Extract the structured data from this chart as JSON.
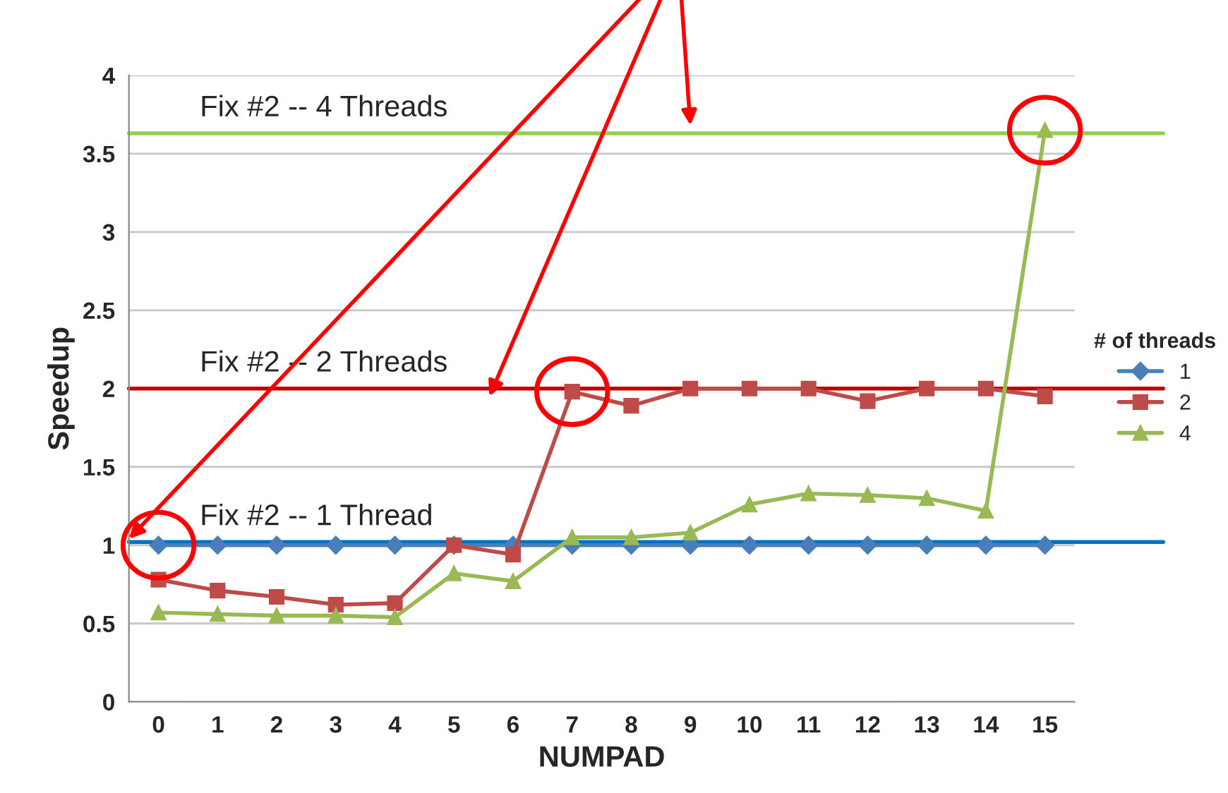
{
  "chart_data": {
    "type": "line",
    "xlabel": "NUMPAD",
    "ylabel": "Speedup",
    "legend_title": "# of threads",
    "x": [
      0,
      1,
      2,
      3,
      4,
      5,
      6,
      7,
      8,
      9,
      10,
      11,
      12,
      13,
      14,
      15
    ],
    "series": [
      {
        "name": "1",
        "color": "#4a7ebb",
        "marker": "diamond",
        "values": [
          1.0,
          1.0,
          1.0,
          1.0,
          1.0,
          1.0,
          1.0,
          1.0,
          1.0,
          1.0,
          1.0,
          1.0,
          1.0,
          1.0,
          1.0,
          1.0
        ]
      },
      {
        "name": "2",
        "color": "#be4b48",
        "marker": "square",
        "values": [
          0.78,
          0.71,
          0.67,
          0.62,
          0.63,
          1.0,
          0.94,
          1.98,
          1.89,
          2.0,
          2.0,
          2.0,
          1.92,
          2.0,
          2.0,
          1.95
        ]
      },
      {
        "name": "4",
        "color": "#98b954",
        "marker": "triangle",
        "values": [
          0.57,
          0.56,
          0.55,
          0.55,
          0.54,
          0.82,
          0.77,
          1.05,
          1.05,
          1.08,
          1.26,
          1.33,
          1.32,
          1.3,
          1.22,
          3.65
        ]
      }
    ],
    "xlim": [
      -0.5,
      15.5
    ],
    "xticks": [
      0,
      1,
      2,
      3,
      4,
      5,
      6,
      7,
      8,
      9,
      10,
      11,
      12,
      13,
      14,
      15
    ],
    "ylim": [
      0,
      4
    ],
    "yticks": [
      0,
      0.5,
      1,
      1.5,
      2,
      2.5,
      3,
      3.5,
      4
    ],
    "grid": "y",
    "legend": "right",
    "ref_lines": [
      {
        "axis": "y",
        "value": 3.63,
        "label": "Fix #2 -- 4 Threads",
        "color": "#92d050"
      },
      {
        "axis": "y",
        "value": 2.0,
        "label": "Fix #2 -- 2 Threads",
        "color": "#c00000"
      },
      {
        "axis": "y",
        "value": 1.02,
        "label": "Fix #2 -- 1 Thread",
        "color": "#0070c0"
      }
    ]
  }
}
